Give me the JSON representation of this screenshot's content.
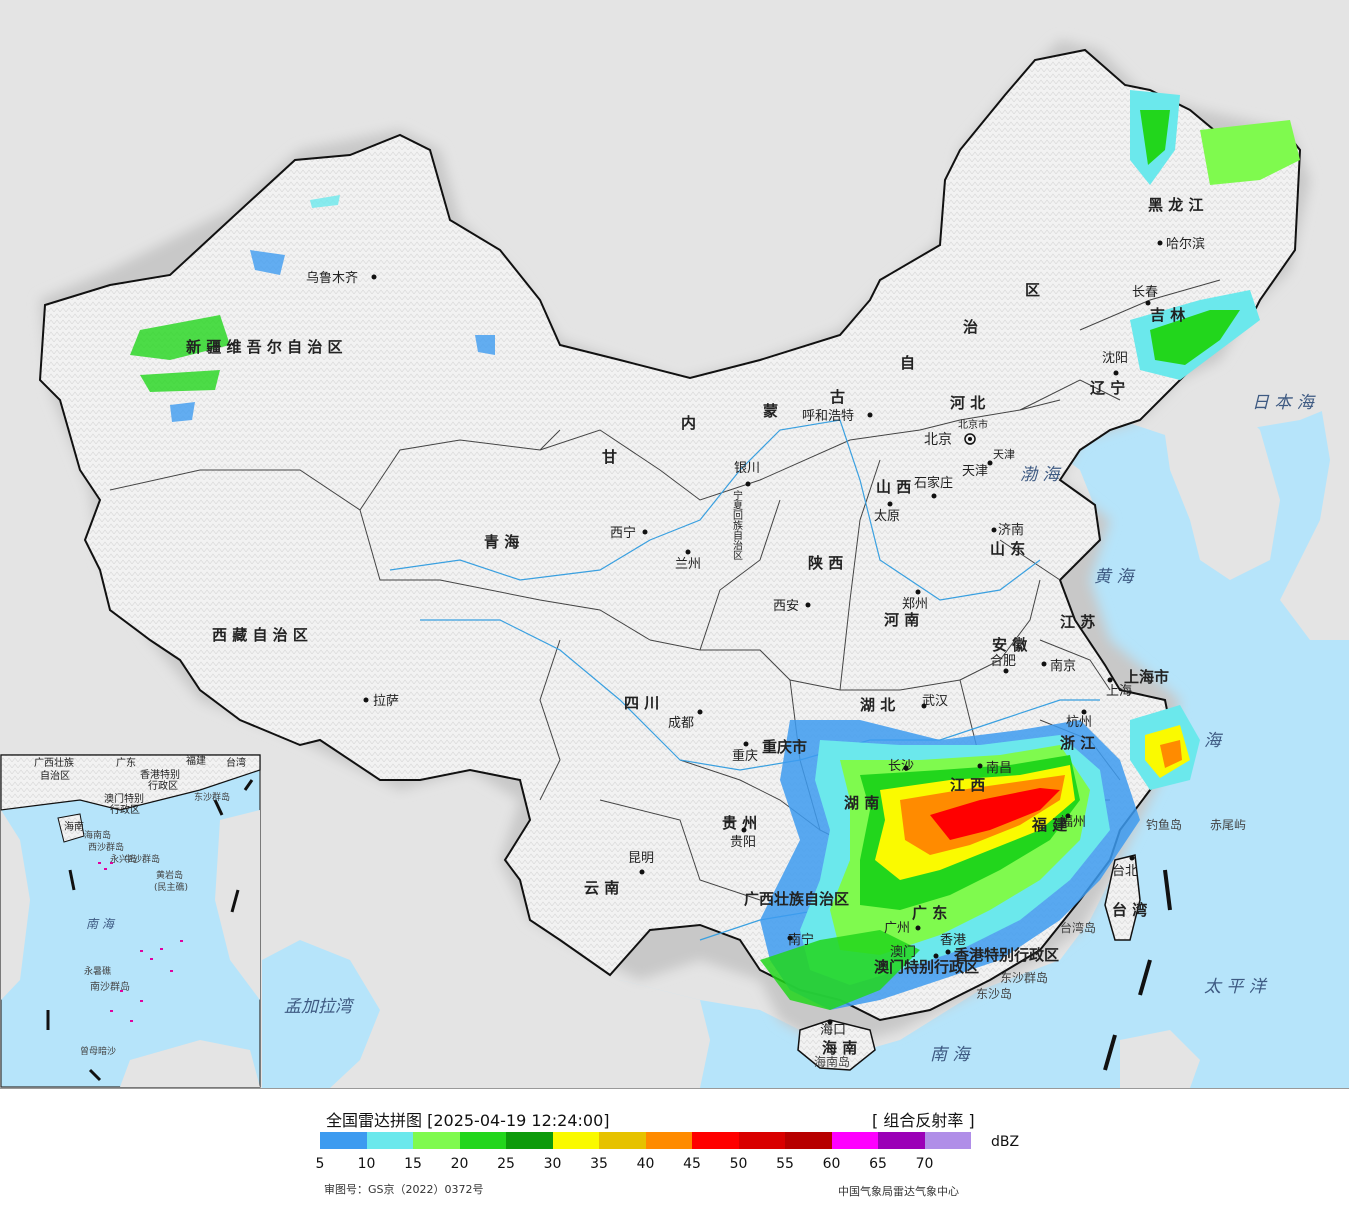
{
  "map": {
    "provinces": [
      {
        "id": "xinjiang",
        "name": "新 疆 维 吾 尔 自 治 区"
      },
      {
        "id": "xizang",
        "name": "西 藏 自 治 区"
      },
      {
        "id": "qinghai",
        "name": "青     海"
      },
      {
        "id": "gansu",
        "name": "甘"
      },
      {
        "id": "sichuan",
        "name": "四     川"
      },
      {
        "id": "yunnan",
        "name": "云     南"
      },
      {
        "id": "neimenggu-1",
        "name": "内"
      },
      {
        "id": "neimenggu-2",
        "name": "蒙"
      },
      {
        "id": "neimenggu-3",
        "name": "古"
      },
      {
        "id": "neimenggu-4",
        "name": "自"
      },
      {
        "id": "neimenggu-5",
        "name": "治"
      },
      {
        "id": "neimenggu-6",
        "name": "区"
      },
      {
        "id": "heilongjiang",
        "name": "黑  龙  江"
      },
      {
        "id": "jilin",
        "name": "吉  林"
      },
      {
        "id": "liaoning",
        "name": "辽  宁"
      },
      {
        "id": "hebei",
        "name": "河     北"
      },
      {
        "id": "shanxi",
        "name": "山  西"
      },
      {
        "id": "shandong",
        "name": "山  东"
      },
      {
        "id": "henan",
        "name": "河  南"
      },
      {
        "id": "shaanxi",
        "name": "陕  西"
      },
      {
        "id": "ningxia",
        "name": "宁夏回族自治区"
      },
      {
        "id": "jiangsu",
        "name": "江  苏"
      },
      {
        "id": "anhui",
        "name": "安  徽"
      },
      {
        "id": "hubei",
        "name": "湖  北"
      },
      {
        "id": "hunan",
        "name": "湖  南"
      },
      {
        "id": "jiangxi",
        "name": "江  西"
      },
      {
        "id": "zhejiang",
        "name": "浙  江"
      },
      {
        "id": "fujian",
        "name": "福  建"
      },
      {
        "id": "guangdong",
        "name": "广  东"
      },
      {
        "id": "guangxi",
        "name": "广西壮族自治区"
      },
      {
        "id": "guizhou",
        "name": "贵  州"
      },
      {
        "id": "chongqing",
        "name": "重庆市"
      },
      {
        "id": "shanghai",
        "name": "上海市"
      },
      {
        "id": "hainan",
        "name": "海  南"
      },
      {
        "id": "taiwan",
        "name": "台  湾"
      },
      {
        "id": "xianggang",
        "name": "香港特别行政区"
      },
      {
        "id": "aomen",
        "name": "澳门特别行政区"
      },
      {
        "id": "beijing",
        "name": "北京市"
      },
      {
        "id": "tianjin",
        "name": "天津"
      }
    ],
    "cities": [
      {
        "id": "urumqi",
        "name": "乌鲁木齐"
      },
      {
        "id": "lhasa",
        "name": "拉萨"
      },
      {
        "id": "xining",
        "name": "西宁"
      },
      {
        "id": "lanzhou",
        "name": "兰州"
      },
      {
        "id": "chengdu",
        "name": "成都"
      },
      {
        "id": "kunming",
        "name": "昆明"
      },
      {
        "id": "hohhot",
        "name": "呼和浩特"
      },
      {
        "id": "yinchuan",
        "name": "银川"
      },
      {
        "id": "xian",
        "name": "西安"
      },
      {
        "id": "taiyuan",
        "name": "太原"
      },
      {
        "id": "shijiazhuang",
        "name": "石家庄"
      },
      {
        "id": "beijing",
        "name": "北京"
      },
      {
        "id": "tianjin",
        "name": "天津"
      },
      {
        "id": "jinan",
        "name": "济南"
      },
      {
        "id": "zhengzhou",
        "name": "郑州"
      },
      {
        "id": "wuhan",
        "name": "武汉"
      },
      {
        "id": "changsha",
        "name": "长沙"
      },
      {
        "id": "nanchang",
        "name": "南昌"
      },
      {
        "id": "hefei",
        "name": "合肥"
      },
      {
        "id": "nanjing",
        "name": "南京"
      },
      {
        "id": "shanghai",
        "name": "上海"
      },
      {
        "id": "hangzhou",
        "name": "杭州"
      },
      {
        "id": "fuzhou",
        "name": "福州"
      },
      {
        "id": "taibei",
        "name": "台北"
      },
      {
        "id": "guangzhou",
        "name": "广州"
      },
      {
        "id": "xianggang",
        "name": "香港"
      },
      {
        "id": "aomen",
        "name": "澳门"
      },
      {
        "id": "nanning",
        "name": "南宁"
      },
      {
        "id": "haikou",
        "name": "海口"
      },
      {
        "id": "guiyang",
        "name": "贵阳"
      },
      {
        "id": "chongqing",
        "name": "重庆"
      },
      {
        "id": "shenyang",
        "name": "沈阳"
      },
      {
        "id": "changchun",
        "name": "长春"
      },
      {
        "id": "harbin",
        "name": "哈尔滨"
      }
    ],
    "seas": [
      {
        "id": "bohai",
        "name": "渤 海"
      },
      {
        "id": "huanghai",
        "name": "黄  海"
      },
      {
        "id": "donghai",
        "name": "海"
      },
      {
        "id": "nanhai",
        "name": "南     海"
      },
      {
        "id": "taipingyang",
        "name": "太  平  洋"
      },
      {
        "id": "ribenhai",
        "name": "日 本 海"
      },
      {
        "id": "mengjialawan",
        "name": "孟加拉湾"
      }
    ],
    "islands": [
      {
        "id": "diaoyudao",
        "name": "钓鱼岛"
      },
      {
        "id": "chiweiyu",
        "name": "赤尾屿"
      },
      {
        "id": "taiwandao",
        "name": "台湾岛"
      },
      {
        "id": "dongshaqundao",
        "name": "东沙群岛"
      },
      {
        "id": "dongshadao",
        "name": "东沙岛"
      },
      {
        "id": "hainandao",
        "name": "海南岛"
      }
    ],
    "inset": {
      "labels": [
        {
          "id": "guangxi",
          "name": "广西壮族"
        },
        {
          "id": "guangxi2",
          "name": "自治区"
        },
        {
          "id": "guangdong",
          "name": "广东"
        },
        {
          "id": "fujian",
          "name": "福建"
        },
        {
          "id": "taiwan",
          "name": "台湾"
        },
        {
          "id": "xianggang",
          "name": "香港特别"
        },
        {
          "id": "xianggang2",
          "name": "行政区"
        },
        {
          "id": "aomen",
          "name": "澳门特别"
        },
        {
          "id": "aomen2",
          "name": "行政区"
        },
        {
          "id": "dongsha",
          "name": "东沙群岛"
        },
        {
          "id": "hainan",
          "name": "海南"
        },
        {
          "id": "hainandao",
          "name": "海南岛"
        },
        {
          "id": "xisha",
          "name": "西沙群岛"
        },
        {
          "id": "yongxing",
          "name": "永兴岛"
        },
        {
          "id": "zhongsha",
          "name": "中沙群岛"
        },
        {
          "id": "huangyan",
          "name": "黄岩岛"
        },
        {
          "id": "huangyan2",
          "name": "(民主礁)"
        },
        {
          "id": "nanhai",
          "name": "南     海"
        },
        {
          "id": "yongshu",
          "name": "永暑礁"
        },
        {
          "id": "nansha",
          "name": "南沙群岛"
        },
        {
          "id": "zengmu",
          "name": "曾母暗沙"
        }
      ]
    }
  },
  "legend": {
    "title": "全国雷达拼图 [2025-04-19 12:24:00]",
    "product": "[ 组合反射率 ]",
    "unit": "dBZ",
    "colors": [
      "#3d9bf0",
      "#6be8ec",
      "#7ffa4e",
      "#22d61c",
      "#0d9a0b",
      "#fafa00",
      "#e6c200",
      "#ff8b00",
      "#ff0000",
      "#d90000",
      "#b70000",
      "#ff00ff",
      "#9b00b7",
      "#b08ee8"
    ],
    "ticks": [
      "5",
      "10",
      "15",
      "20",
      "25",
      "30",
      "35",
      "40",
      "45",
      "50",
      "55",
      "60",
      "65",
      "70"
    ],
    "approval": "审图号：GS京（2022）0372号",
    "source": "中国气象局雷达气象中心"
  },
  "colors": {
    "sea": "#b6e4fa",
    "land": "#efefef",
    "outside": "#e4e4e4",
    "border": "#111111"
  }
}
